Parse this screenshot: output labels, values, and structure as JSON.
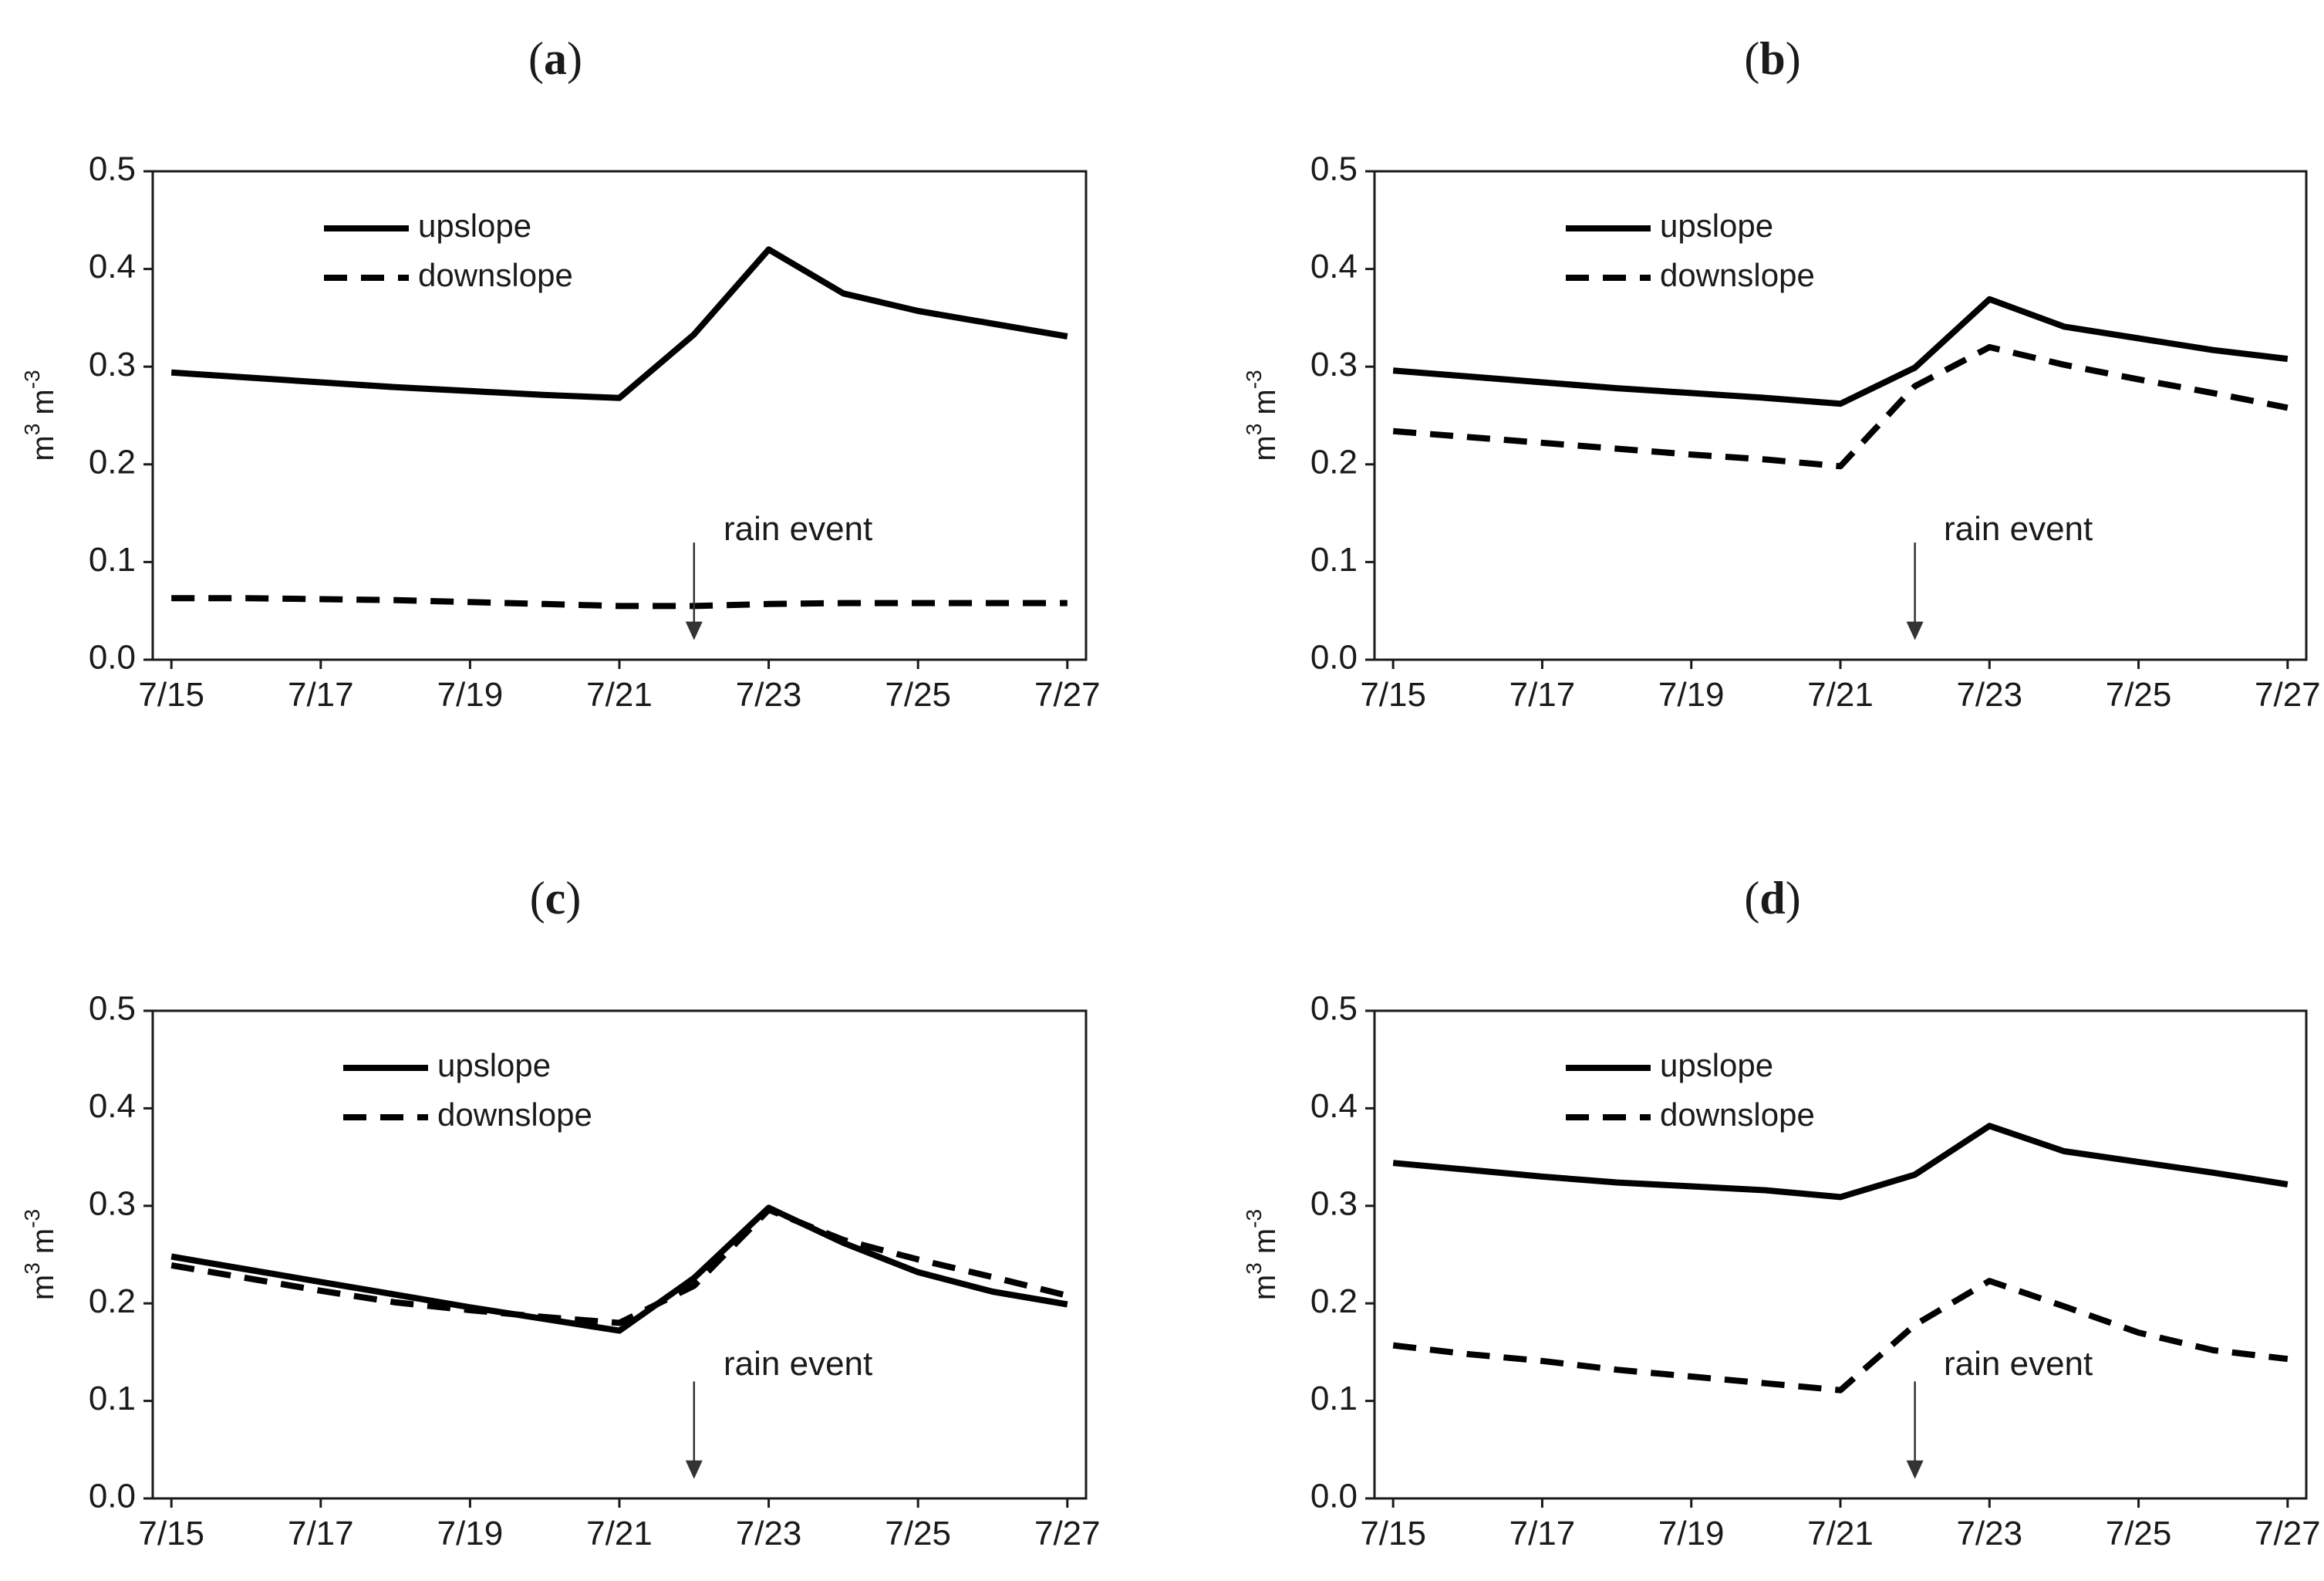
{
  "figure": {
    "panel_labels": [
      "(a)",
      "(b)",
      "(c)",
      "(d)"
    ]
  },
  "colors": {
    "line": "#000000",
    "axis": "#1a1a1a",
    "text": "#1a1a1a",
    "arrow": "#333333"
  },
  "chart_data": [
    {
      "label_letter": "a",
      "label_open": "(",
      "label_close": ")",
      "type": "line",
      "ylabel_base": "m",
      "ylabel_exp1": "3",
      "ylabel_mid": " m",
      "ylabel_exp2": "-3",
      "xlim": [
        14.75,
        27.25
      ],
      "ylim": [
        0,
        0.5
      ],
      "yticks": [
        0,
        0.1,
        0.2,
        0.3,
        0.4,
        0.5
      ],
      "ytick_labels": [
        "0.0",
        "0.1",
        "0.2",
        "0.3",
        "0.4",
        "0.5"
      ],
      "xticks": [
        15,
        17,
        19,
        21,
        23,
        25,
        27
      ],
      "xtick_labels": [
        "7/15",
        "7/17",
        "7/19",
        "7/21",
        "7/23",
        "7/25",
        "7/27"
      ],
      "series": [
        {
          "name": "upslope",
          "style": "solid",
          "x": [
            15,
            16,
            17,
            18,
            19,
            20,
            21,
            22,
            23,
            24,
            25,
            26,
            27
          ],
          "y": [
            0.294,
            0.289,
            0.284,
            0.279,
            0.275,
            0.271,
            0.268,
            0.333,
            0.42,
            0.375,
            0.357,
            0.344,
            0.331
          ]
        },
        {
          "name": "downslope",
          "style": "dashed",
          "x": [
            15,
            16,
            17,
            18,
            19,
            20,
            21,
            22,
            23,
            24,
            25,
            26,
            27
          ],
          "y": [
            0.063,
            0.063,
            0.062,
            0.061,
            0.059,
            0.057,
            0.055,
            0.055,
            0.057,
            0.058,
            0.058,
            0.058,
            0.058
          ]
        }
      ],
      "legend": [
        {
          "label": "upslope",
          "style": "solid"
        },
        {
          "label": "downslope",
          "style": "dashed"
        }
      ],
      "annotation": {
        "text": "rain event",
        "x": 22,
        "y_top": 0.12,
        "y_bottom": 0.02
      }
    },
    {
      "label_letter": "b",
      "label_open": "(",
      "label_close": ")",
      "type": "line",
      "ylabel_base": "m",
      "ylabel_exp1": "3",
      "ylabel_mid": " m",
      "ylabel_exp2": "-3",
      "xlim": [
        14.75,
        27.25
      ],
      "ylim": [
        0,
        0.5
      ],
      "yticks": [
        0,
        0.1,
        0.2,
        0.3,
        0.4,
        0.5
      ],
      "ytick_labels": [
        "0.0",
        "0.1",
        "0.2",
        "0.3",
        "0.4",
        "0.5"
      ],
      "xticks": [
        15,
        17,
        19,
        21,
        23,
        25,
        27
      ],
      "xtick_labels": [
        "7/15",
        "7/17",
        "7/19",
        "7/21",
        "7/23",
        "7/25",
        "7/27"
      ],
      "series": [
        {
          "name": "upslope",
          "style": "solid",
          "x": [
            15,
            16,
            17,
            18,
            19,
            20,
            21,
            22,
            23,
            24,
            25,
            26,
            27
          ],
          "y": [
            0.296,
            0.29,
            0.284,
            0.278,
            0.273,
            0.268,
            0.262,
            0.299,
            0.369,
            0.341,
            0.329,
            0.317,
            0.308
          ]
        },
        {
          "name": "downslope",
          "style": "dashed",
          "x": [
            15,
            16,
            17,
            18,
            19,
            20,
            21,
            22,
            23,
            24,
            25,
            26,
            27
          ],
          "y": [
            0.234,
            0.228,
            0.222,
            0.216,
            0.21,
            0.205,
            0.198,
            0.28,
            0.32,
            0.302,
            0.287,
            0.273,
            0.258
          ]
        }
      ],
      "legend": [
        {
          "label": "upslope",
          "style": "solid"
        },
        {
          "label": "downslope",
          "style": "dashed"
        }
      ],
      "annotation": {
        "text": "rain event",
        "x": 22,
        "y_top": 0.12,
        "y_bottom": 0.02
      }
    },
    {
      "label_letter": "c",
      "label_open": "(",
      "label_close": ")",
      "type": "line",
      "ylabel_base": "m",
      "ylabel_exp1": "3",
      "ylabel_mid": " m",
      "ylabel_exp2": "-3",
      "xlim": [
        14.75,
        27.25
      ],
      "ylim": [
        0,
        0.5
      ],
      "yticks": [
        0,
        0.1,
        0.2,
        0.3,
        0.4,
        0.5
      ],
      "ytick_labels": [
        "0.0",
        "0.1",
        "0.2",
        "0.3",
        "0.4",
        "0.5"
      ],
      "xticks": [
        15,
        17,
        19,
        21,
        23,
        25,
        27
      ],
      "xtick_labels": [
        "7/15",
        "7/17",
        "7/19",
        "7/21",
        "7/23",
        "7/25",
        "7/27"
      ],
      "series": [
        {
          "name": "upslope",
          "style": "solid",
          "x": [
            15,
            16,
            17,
            18,
            19,
            20,
            21,
            22,
            23,
            24,
            25,
            26,
            27
          ],
          "y": [
            0.248,
            0.235,
            0.222,
            0.209,
            0.196,
            0.184,
            0.172,
            0.226,
            0.298,
            0.262,
            0.232,
            0.212,
            0.199
          ]
        },
        {
          "name": "downslope",
          "style": "dashed",
          "x": [
            15,
            16,
            17,
            18,
            19,
            20,
            21,
            22,
            23,
            24,
            25,
            26,
            27
          ],
          "y": [
            0.239,
            0.226,
            0.213,
            0.201,
            0.193,
            0.186,
            0.18,
            0.218,
            0.296,
            0.265,
            0.245,
            0.227,
            0.208
          ]
        }
      ],
      "legend": [
        {
          "label": "upslope",
          "style": "solid"
        },
        {
          "label": "downslope",
          "style": "dashed"
        }
      ],
      "annotation": {
        "text": "rain event",
        "x": 22,
        "y_top": 0.12,
        "y_bottom": 0.02
      }
    },
    {
      "label_letter": "d",
      "label_open": "(",
      "label_close": ")",
      "type": "line",
      "ylabel_base": "m",
      "ylabel_exp1": "3",
      "ylabel_mid": " m",
      "ylabel_exp2": "-3",
      "xlim": [
        14.75,
        27.25
      ],
      "ylim": [
        0,
        0.5
      ],
      "yticks": [
        0,
        0.1,
        0.2,
        0.3,
        0.4,
        0.5
      ],
      "ytick_labels": [
        "0.0",
        "0.1",
        "0.2",
        "0.3",
        "0.4",
        "0.5"
      ],
      "xticks": [
        15,
        17,
        19,
        21,
        23,
        25,
        27
      ],
      "xtick_labels": [
        "7/15",
        "7/17",
        "7/19",
        "7/21",
        "7/23",
        "7/25",
        "7/27"
      ],
      "series": [
        {
          "name": "upslope",
          "style": "solid",
          "x": [
            15,
            16,
            17,
            18,
            19,
            20,
            21,
            22,
            23,
            24,
            25,
            26,
            27
          ],
          "y": [
            0.344,
            0.337,
            0.33,
            0.324,
            0.32,
            0.316,
            0.309,
            0.332,
            0.382,
            0.356,
            0.345,
            0.334,
            0.322
          ]
        },
        {
          "name": "downslope",
          "style": "dashed",
          "x": [
            15,
            16,
            17,
            18,
            19,
            20,
            21,
            22,
            23,
            24,
            25,
            26,
            27
          ],
          "y": [
            0.157,
            0.148,
            0.141,
            0.132,
            0.125,
            0.118,
            0.111,
            0.178,
            0.223,
            0.197,
            0.17,
            0.152,
            0.143
          ]
        }
      ],
      "legend": [
        {
          "label": "upslope",
          "style": "solid"
        },
        {
          "label": "downslope",
          "style": "dashed"
        }
      ],
      "annotation": {
        "text": "rain event",
        "x": 22,
        "y_top": 0.12,
        "y_bottom": 0.02
      }
    }
  ]
}
